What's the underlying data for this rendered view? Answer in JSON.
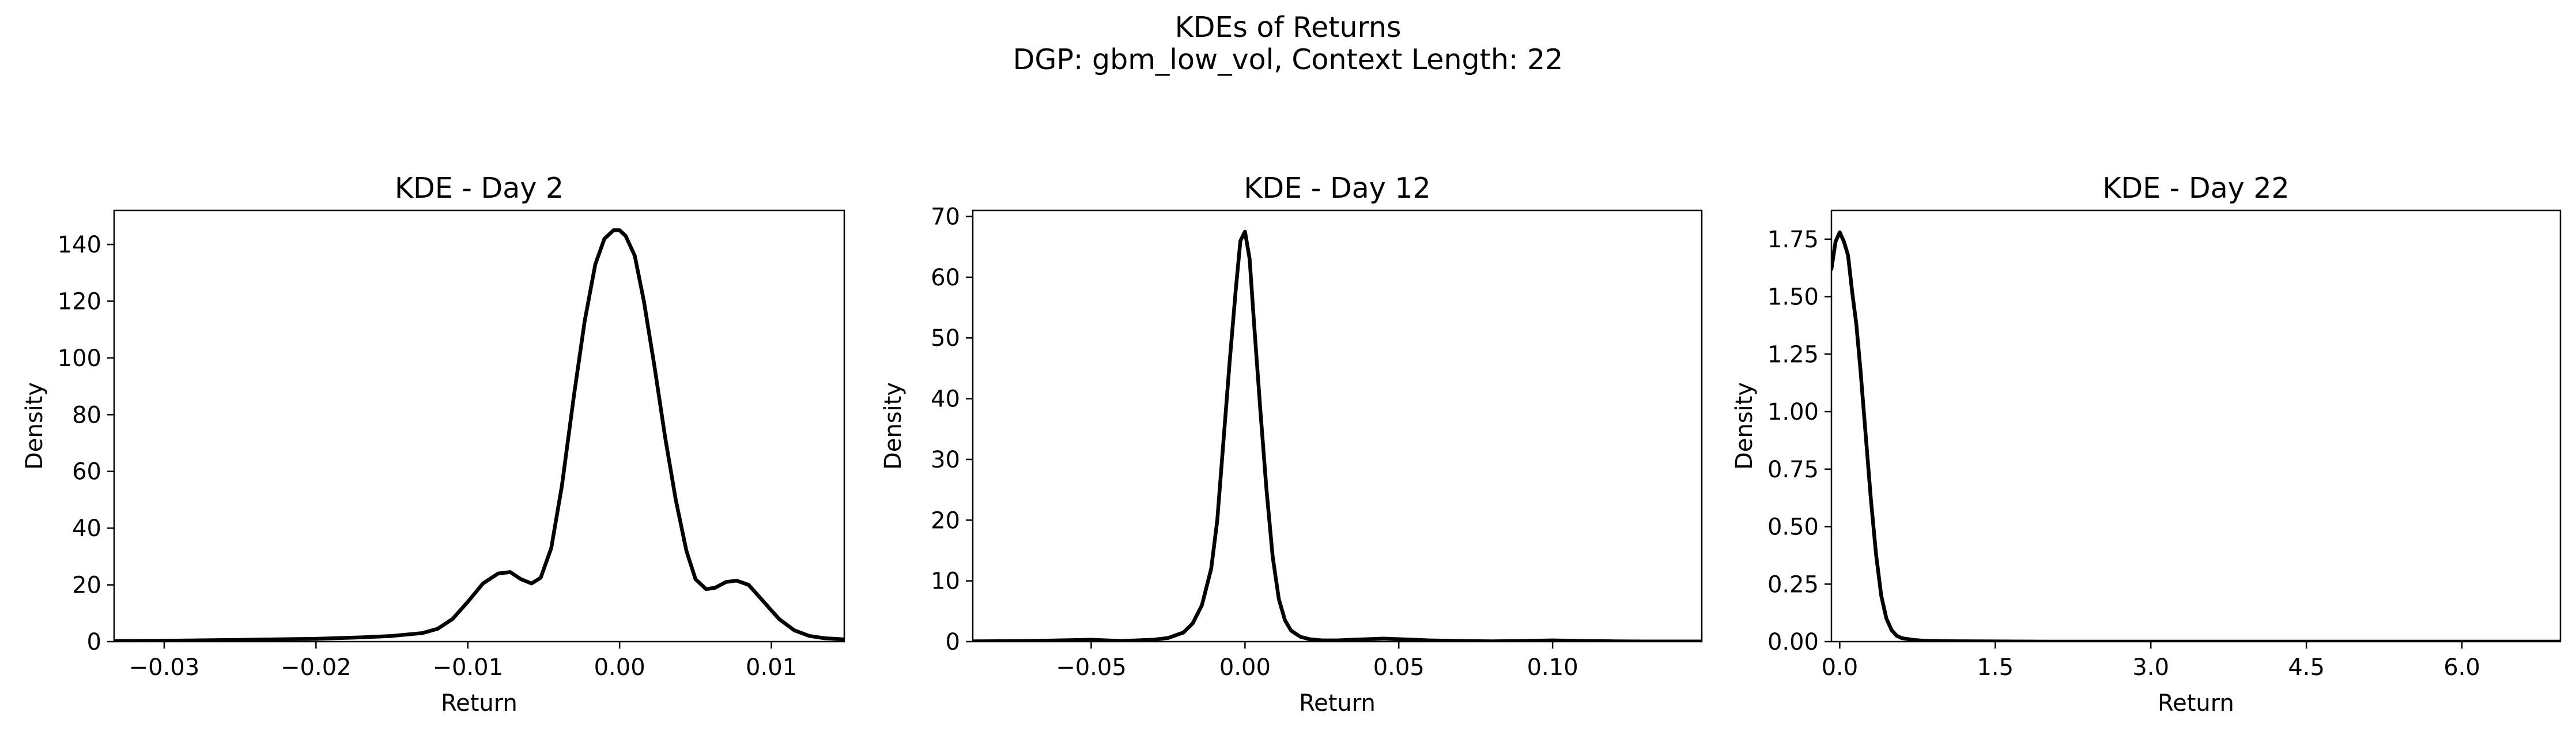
{
  "figure": {
    "title": "KDEs of Returns",
    "subtitle": "DGP: gbm_low_vol, Context Length: 22"
  },
  "chart_data": [
    {
      "type": "line",
      "title": "KDE - Day 2",
      "xlabel": "Return",
      "ylabel": "Density",
      "xlim": [
        -0.0333,
        0.0148
      ],
      "ylim": [
        0,
        152
      ],
      "xticks": [
        -0.03,
        -0.02,
        -0.01,
        0.0,
        0.01
      ],
      "xtick_labels": [
        "−0.03",
        "−0.02",
        "−0.01",
        "0.00",
        "0.01"
      ],
      "yticks": [
        0,
        20,
        40,
        60,
        80,
        100,
        120,
        140
      ],
      "ytick_labels": [
        "0",
        "20",
        "40",
        "60",
        "80",
        "100",
        "120",
        "140"
      ],
      "grid": false,
      "series": [
        {
          "color": "#000000",
          "x": [
            -0.0333,
            -0.03,
            -0.025,
            -0.02,
            -0.017,
            -0.015,
            -0.013,
            -0.012,
            -0.011,
            -0.01,
            -0.009,
            -0.008,
            -0.0072,
            -0.0065,
            -0.0058,
            -0.0052,
            -0.0045,
            -0.0038,
            -0.003,
            -0.0023,
            -0.0016,
            -0.001,
            -0.0004,
            0.0,
            0.0004,
            0.001,
            0.0016,
            0.0023,
            0.003,
            0.0037,
            0.0044,
            0.005,
            0.0057,
            0.0063,
            0.007,
            0.0077,
            0.0085,
            0.0095,
            0.0105,
            0.0115,
            0.0125,
            0.0135,
            0.0148
          ],
          "values": [
            0.2,
            0.3,
            0.6,
            1.0,
            1.5,
            2.0,
            3.0,
            4.5,
            8.0,
            14.0,
            20.5,
            24.0,
            24.5,
            22.0,
            20.5,
            22.5,
            33.0,
            55.0,
            87.0,
            113.0,
            133.0,
            142.0,
            145.0,
            145.0,
            143.0,
            136.0,
            120.0,
            97.0,
            72.0,
            50.0,
            32.0,
            22.0,
            18.5,
            19.0,
            21.0,
            21.5,
            20.0,
            14.0,
            8.0,
            4.0,
            2.0,
            1.2,
            0.8
          ]
        }
      ]
    },
    {
      "type": "line",
      "title": "KDE - Day 12",
      "xlabel": "Return",
      "ylabel": "Density",
      "xlim": [
        -0.0885,
        0.1485
      ],
      "ylim": [
        0,
        71
      ],
      "xticks": [
        -0.05,
        0.0,
        0.05,
        0.1
      ],
      "xtick_labels": [
        "−0.05",
        "0.00",
        "0.05",
        "0.10"
      ],
      "yticks": [
        0,
        10,
        20,
        30,
        40,
        50,
        60,
        70
      ],
      "ytick_labels": [
        "0",
        "10",
        "20",
        "30",
        "40",
        "50",
        "60",
        "70"
      ],
      "grid": false,
      "series": [
        {
          "color": "#000000",
          "x": [
            -0.0885,
            -0.07,
            -0.05,
            -0.04,
            -0.03,
            -0.025,
            -0.02,
            -0.017,
            -0.014,
            -0.011,
            -0.009,
            -0.007,
            -0.005,
            -0.003,
            -0.0015,
            0.0,
            0.0015,
            0.003,
            0.005,
            0.007,
            0.009,
            0.011,
            0.013,
            0.015,
            0.018,
            0.021,
            0.025,
            0.03,
            0.035,
            0.04,
            0.045,
            0.05,
            0.06,
            0.07,
            0.08,
            0.09,
            0.1,
            0.11,
            0.12,
            0.13,
            0.1485
          ],
          "values": [
            0.05,
            0.1,
            0.3,
            0.1,
            0.3,
            0.6,
            1.5,
            3.0,
            6.0,
            12.0,
            20.0,
            33.0,
            46.0,
            58.0,
            66.0,
            67.5,
            63.0,
            52.0,
            38.0,
            25.0,
            14.0,
            7.0,
            3.5,
            1.8,
            0.8,
            0.4,
            0.2,
            0.2,
            0.3,
            0.4,
            0.5,
            0.4,
            0.2,
            0.1,
            0.05,
            0.1,
            0.2,
            0.1,
            0.05,
            0.02,
            0.02
          ]
        }
      ]
    },
    {
      "type": "line",
      "title": "KDE - Day 22",
      "xlabel": "Return",
      "ylabel": "Density",
      "xlim": [
        -0.08,
        6.95
      ],
      "ylim": [
        0,
        1.875
      ],
      "xticks": [
        0.0,
        1.5,
        3.0,
        4.5,
        6.0
      ],
      "xtick_labels": [
        "0.0",
        "1.5",
        "3.0",
        "4.5",
        "6.0"
      ],
      "yticks": [
        0.0,
        0.25,
        0.5,
        0.75,
        1.0,
        1.25,
        1.5,
        1.75
      ],
      "ytick_labels": [
        "0.00",
        "0.25",
        "0.50",
        "0.75",
        "1.00",
        "1.25",
        "1.50",
        "1.75"
      ],
      "grid": false,
      "series": [
        {
          "color": "#000000",
          "x": [
            -0.08,
            -0.04,
            0.0,
            0.04,
            0.08,
            0.12,
            0.16,
            0.2,
            0.25,
            0.3,
            0.35,
            0.4,
            0.45,
            0.5,
            0.55,
            0.6,
            0.7,
            0.8,
            1.0,
            1.5,
            2.0,
            3.0,
            4.0,
            5.0,
            6.0,
            6.95
          ],
          "values": [
            1.62,
            1.74,
            1.78,
            1.74,
            1.68,
            1.52,
            1.38,
            1.18,
            0.9,
            0.62,
            0.38,
            0.2,
            0.1,
            0.05,
            0.025,
            0.015,
            0.008,
            0.004,
            0.002,
            0.001,
            0.0,
            0.0,
            0.0,
            0.0,
            0.0,
            0.0
          ]
        }
      ]
    }
  ]
}
